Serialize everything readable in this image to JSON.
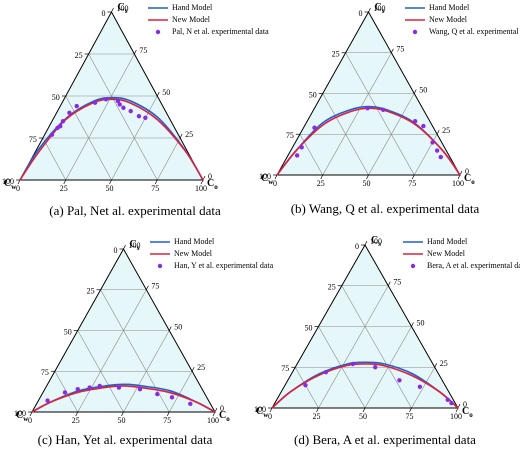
{
  "chart_data": [
    {
      "type": "ternary",
      "caption": "(a) Pal, Net al. experimental data",
      "top_label": "Cs",
      "left_label": "Cw",
      "right_label": "Co",
      "ticks": [
        0,
        25,
        50,
        75,
        100
      ],
      "series": [
        {
          "name": "Hand Model",
          "type": "line",
          "color": "#1f5fd6",
          "x": [
            0,
            1,
            7,
            17,
            26,
            37,
            57,
            81,
            100
          ],
          "values": [
            0,
            18,
            37,
            47,
            49,
            47,
            37,
            18,
            0
          ]
        },
        {
          "name": "New Model",
          "type": "line",
          "color": "#e0203a",
          "x": [
            0,
            2,
            7,
            17,
            26,
            37,
            57,
            82,
            100
          ],
          "values": [
            0,
            17,
            36,
            46,
            48,
            46,
            36,
            17,
            0
          ]
        },
        {
          "name": "Pal, N et al. experimental data",
          "type": "scatter",
          "color": "#8a2be2",
          "x": [
            4,
            5,
            6,
            6,
            7,
            9,
            18,
            23,
            30,
            32,
            35,
            40,
            46,
            50
          ],
          "values": [
            27,
            31,
            32,
            35,
            40,
            44,
            46,
            48,
            47,
            45,
            43,
            41,
            38,
            37
          ]
        }
      ]
    },
    {
      "type": "ternary",
      "caption": "(b) Wang, Q et al. experimental data",
      "top_label": "Cs",
      "left_label": "Cw",
      "right_label": "Co",
      "ticks": [
        0,
        25,
        50,
        75,
        100
      ],
      "series": [
        {
          "name": "Hand Model",
          "type": "line",
          "color": "#1f5fd6",
          "x": [
            0,
            3,
            9,
            20,
            29,
            40,
            59,
            83,
            100
          ],
          "values": [
            0,
            15,
            32,
            40,
            42,
            40,
            32,
            15,
            0
          ]
        },
        {
          "name": "New Model",
          "type": "line",
          "color": "#e0203a",
          "x": [
            0,
            3,
            10,
            21,
            30,
            41,
            60,
            83,
            100
          ],
          "values": [
            0,
            15,
            31,
            39,
            41,
            39,
            31,
            15,
            0
          ]
        },
        {
          "name": "Wang, Q et al. experimental data",
          "type": "scatter",
          "color": "#8a2be2",
          "x": [
            5,
            5,
            6,
            29,
            38,
            59,
            65,
            75,
            80,
            84
          ],
          "values": [
            12,
            17,
            29,
            41,
            40,
            33,
            30,
            20,
            15,
            11
          ]
        }
      ]
    },
    {
      "type": "ternary",
      "caption": "(c) Han, Yet al. experimental data",
      "top_label": "Cs",
      "left_label": "Cw",
      "right_label": "Co",
      "ticks": [
        0,
        25,
        50,
        75,
        100
      ],
      "series": [
        {
          "name": "Hand Model",
          "type": "line",
          "color": "#1f5fd6",
          "x": [
            0,
            7,
            19,
            32,
            42,
            52,
            69,
            87,
            100
          ],
          "values": [
            0,
            6,
            13,
            16,
            17,
            16,
            13,
            6,
            0
          ]
        },
        {
          "name": "New Model",
          "type": "line",
          "color": "#e0203a",
          "x": [
            0,
            7,
            19,
            32,
            42,
            52,
            69,
            87,
            100
          ],
          "values": [
            0,
            6,
            12,
            15,
            16,
            15,
            12,
            6,
            0
          ]
        },
        {
          "name": "Han, Y et al. experimental data",
          "type": "scatter",
          "color": "#8a2be2",
          "x": [
            5,
            12,
            18,
            24,
            29,
            40,
            52,
            63,
            72,
            84
          ],
          "values": [
            7,
            12,
            14,
            15,
            16,
            15,
            14,
            11,
            9,
            5
          ]
        }
      ]
    },
    {
      "type": "ternary",
      "caption": "(d) Bera, A et al. experimental data",
      "top_label": "Cs",
      "left_label": "Cw",
      "right_label": "Co",
      "ticks": [
        0,
        25,
        50,
        75,
        100
      ],
      "series": [
        {
          "name": "Hand Model",
          "type": "line",
          "color": "#1f5fd6",
          "x": [
            0,
            5,
            15,
            27,
            36,
            47,
            65,
            85,
            100
          ],
          "values": [
            0,
            10,
            21,
            27,
            28,
            27,
            21,
            10,
            0
          ]
        },
        {
          "name": "New Model",
          "type": "line",
          "color": "#e0203a",
          "x": [
            0,
            5,
            15,
            27,
            37,
            47,
            65,
            85,
            100
          ],
          "values": [
            0,
            10,
            20,
            26,
            27,
            26,
            20,
            10,
            0
          ]
        },
        {
          "name": "Bera, A et al. experimental data",
          "type": "scatter",
          "color": "#8a2be2",
          "x": [
            11,
            18,
            30,
            43,
            60,
            73,
            92,
            95
          ],
          "values": [
            14,
            22,
            27,
            25,
            17,
            13,
            5,
            3
          ]
        }
      ]
    }
  ]
}
